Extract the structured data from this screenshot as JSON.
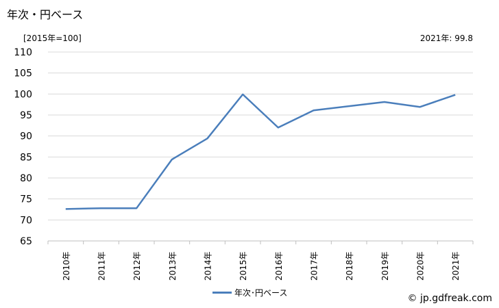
{
  "header": {
    "title": "年次・円ベース",
    "unit_note": "[2015年=100]",
    "latest_note": "2021年: 99.8"
  },
  "legend": {
    "label": "年次･円ベース"
  },
  "footer": {
    "source": "© jp.gdfreak.com"
  },
  "colors": {
    "series": "#4a7ebb",
    "grid": "#d9d9d9",
    "axis": "#bfbfbf"
  },
  "chart_data": {
    "type": "line",
    "categories": [
      "2010年",
      "2011年",
      "2012年",
      "2013年",
      "2014年",
      "2015年",
      "2016年",
      "2017年",
      "2018年",
      "2019年",
      "2020年",
      "2021年"
    ],
    "series": [
      {
        "name": "年次･円ベース",
        "values": [
          72.6,
          72.8,
          72.8,
          84.4,
          89.4,
          99.9,
          92.0,
          96.1,
          97.1,
          98.1,
          96.9,
          99.8
        ]
      }
    ],
    "ylim": [
      65,
      110
    ],
    "yticks": [
      65,
      70,
      75,
      80,
      85,
      90,
      95,
      100,
      105,
      110
    ],
    "grid": true,
    "legend_position": "bottom"
  }
}
